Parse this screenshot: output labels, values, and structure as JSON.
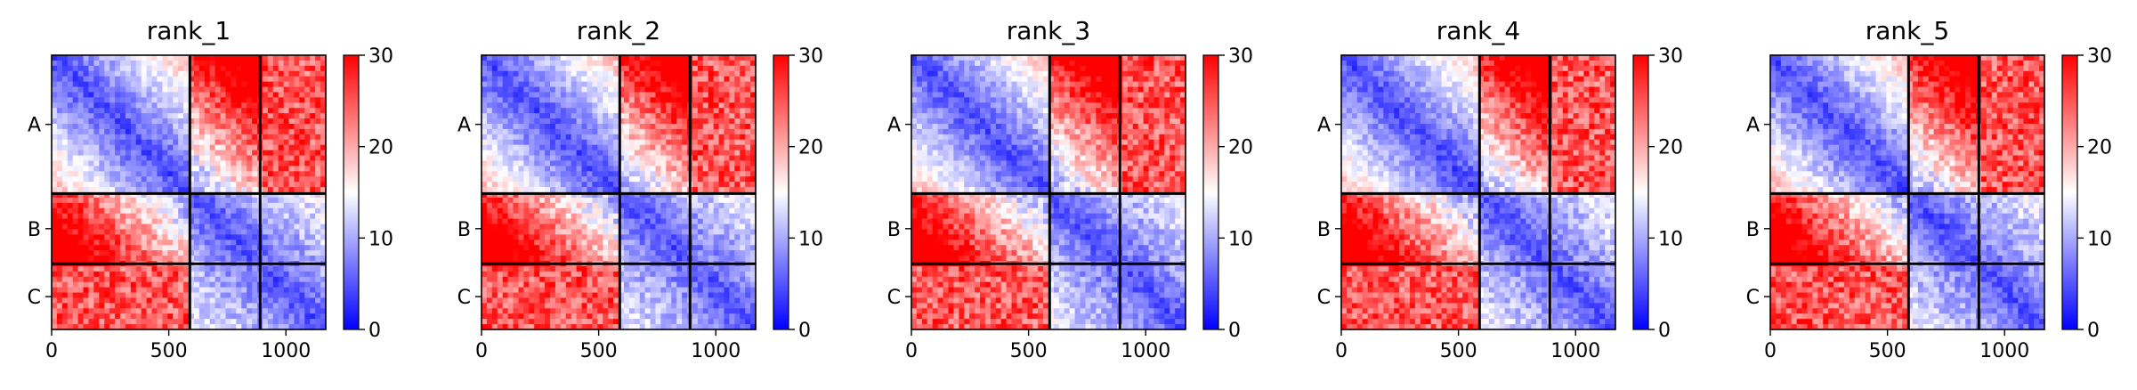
{
  "chart_data": [
    {
      "type": "heatmap",
      "title": "rank_1",
      "x_ticks": [
        0,
        500,
        1000
      ],
      "y_tick_labels": [
        "A",
        "B",
        "C"
      ],
      "segments": [
        {
          "label": "A",
          "start": 0,
          "end": 590
        },
        {
          "label": "B",
          "start": 590,
          "end": 890
        },
        {
          "label": "C",
          "start": 890,
          "end": 1170
        }
      ],
      "xlim": [
        0,
        1170
      ],
      "ylim": [
        1170,
        0
      ],
      "colorbar": {
        "min": 0,
        "max": 30,
        "ticks": [
          0,
          10,
          20,
          30
        ],
        "colors": [
          "#0000ff",
          "#ffffff",
          "#ff0000"
        ]
      },
      "grid": false
    },
    {
      "type": "heatmap",
      "title": "rank_2",
      "x_ticks": [
        0,
        500,
        1000
      ],
      "y_tick_labels": [
        "A",
        "B",
        "C"
      ],
      "segments": [
        {
          "label": "A",
          "start": 0,
          "end": 590
        },
        {
          "label": "B",
          "start": 590,
          "end": 890
        },
        {
          "label": "C",
          "start": 890,
          "end": 1170
        }
      ],
      "xlim": [
        0,
        1170
      ],
      "ylim": [
        1170,
        0
      ],
      "colorbar": {
        "min": 0,
        "max": 30,
        "ticks": [
          0,
          10,
          20,
          30
        ],
        "colors": [
          "#0000ff",
          "#ffffff",
          "#ff0000"
        ]
      },
      "grid": false
    },
    {
      "type": "heatmap",
      "title": "rank_3",
      "x_ticks": [
        0,
        500,
        1000
      ],
      "y_tick_labels": [
        "A",
        "B",
        "C"
      ],
      "segments": [
        {
          "label": "A",
          "start": 0,
          "end": 590
        },
        {
          "label": "B",
          "start": 590,
          "end": 890
        },
        {
          "label": "C",
          "start": 890,
          "end": 1170
        }
      ],
      "xlim": [
        0,
        1170
      ],
      "ylim": [
        1170,
        0
      ],
      "colorbar": {
        "min": 0,
        "max": 30,
        "ticks": [
          0,
          10,
          20,
          30
        ],
        "colors": [
          "#0000ff",
          "#ffffff",
          "#ff0000"
        ]
      },
      "grid": false
    },
    {
      "type": "heatmap",
      "title": "rank_4",
      "x_ticks": [
        0,
        500,
        1000
      ],
      "y_tick_labels": [
        "A",
        "B",
        "C"
      ],
      "segments": [
        {
          "label": "A",
          "start": 0,
          "end": 590
        },
        {
          "label": "B",
          "start": 590,
          "end": 890
        },
        {
          "label": "C",
          "start": 890,
          "end": 1170
        }
      ],
      "xlim": [
        0,
        1170
      ],
      "ylim": [
        1170,
        0
      ],
      "colorbar": {
        "min": 0,
        "max": 30,
        "ticks": [
          0,
          10,
          20,
          30
        ],
        "colors": [
          "#0000ff",
          "#ffffff",
          "#ff0000"
        ]
      },
      "grid": false
    },
    {
      "type": "heatmap",
      "title": "rank_5",
      "x_ticks": [
        0,
        500,
        1000
      ],
      "y_tick_labels": [
        "A",
        "B",
        "C"
      ],
      "segments": [
        {
          "label": "A",
          "start": 0,
          "end": 590
        },
        {
          "label": "B",
          "start": 590,
          "end": 890
        },
        {
          "label": "C",
          "start": 890,
          "end": 1170
        }
      ],
      "xlim": [
        0,
        1170
      ],
      "ylim": [
        1170,
        0
      ],
      "colorbar": {
        "min": 0,
        "max": 30,
        "ticks": [
          0,
          10,
          20,
          30
        ],
        "colors": [
          "#0000ff",
          "#ffffff",
          "#ff0000"
        ]
      },
      "grid": false
    }
  ]
}
